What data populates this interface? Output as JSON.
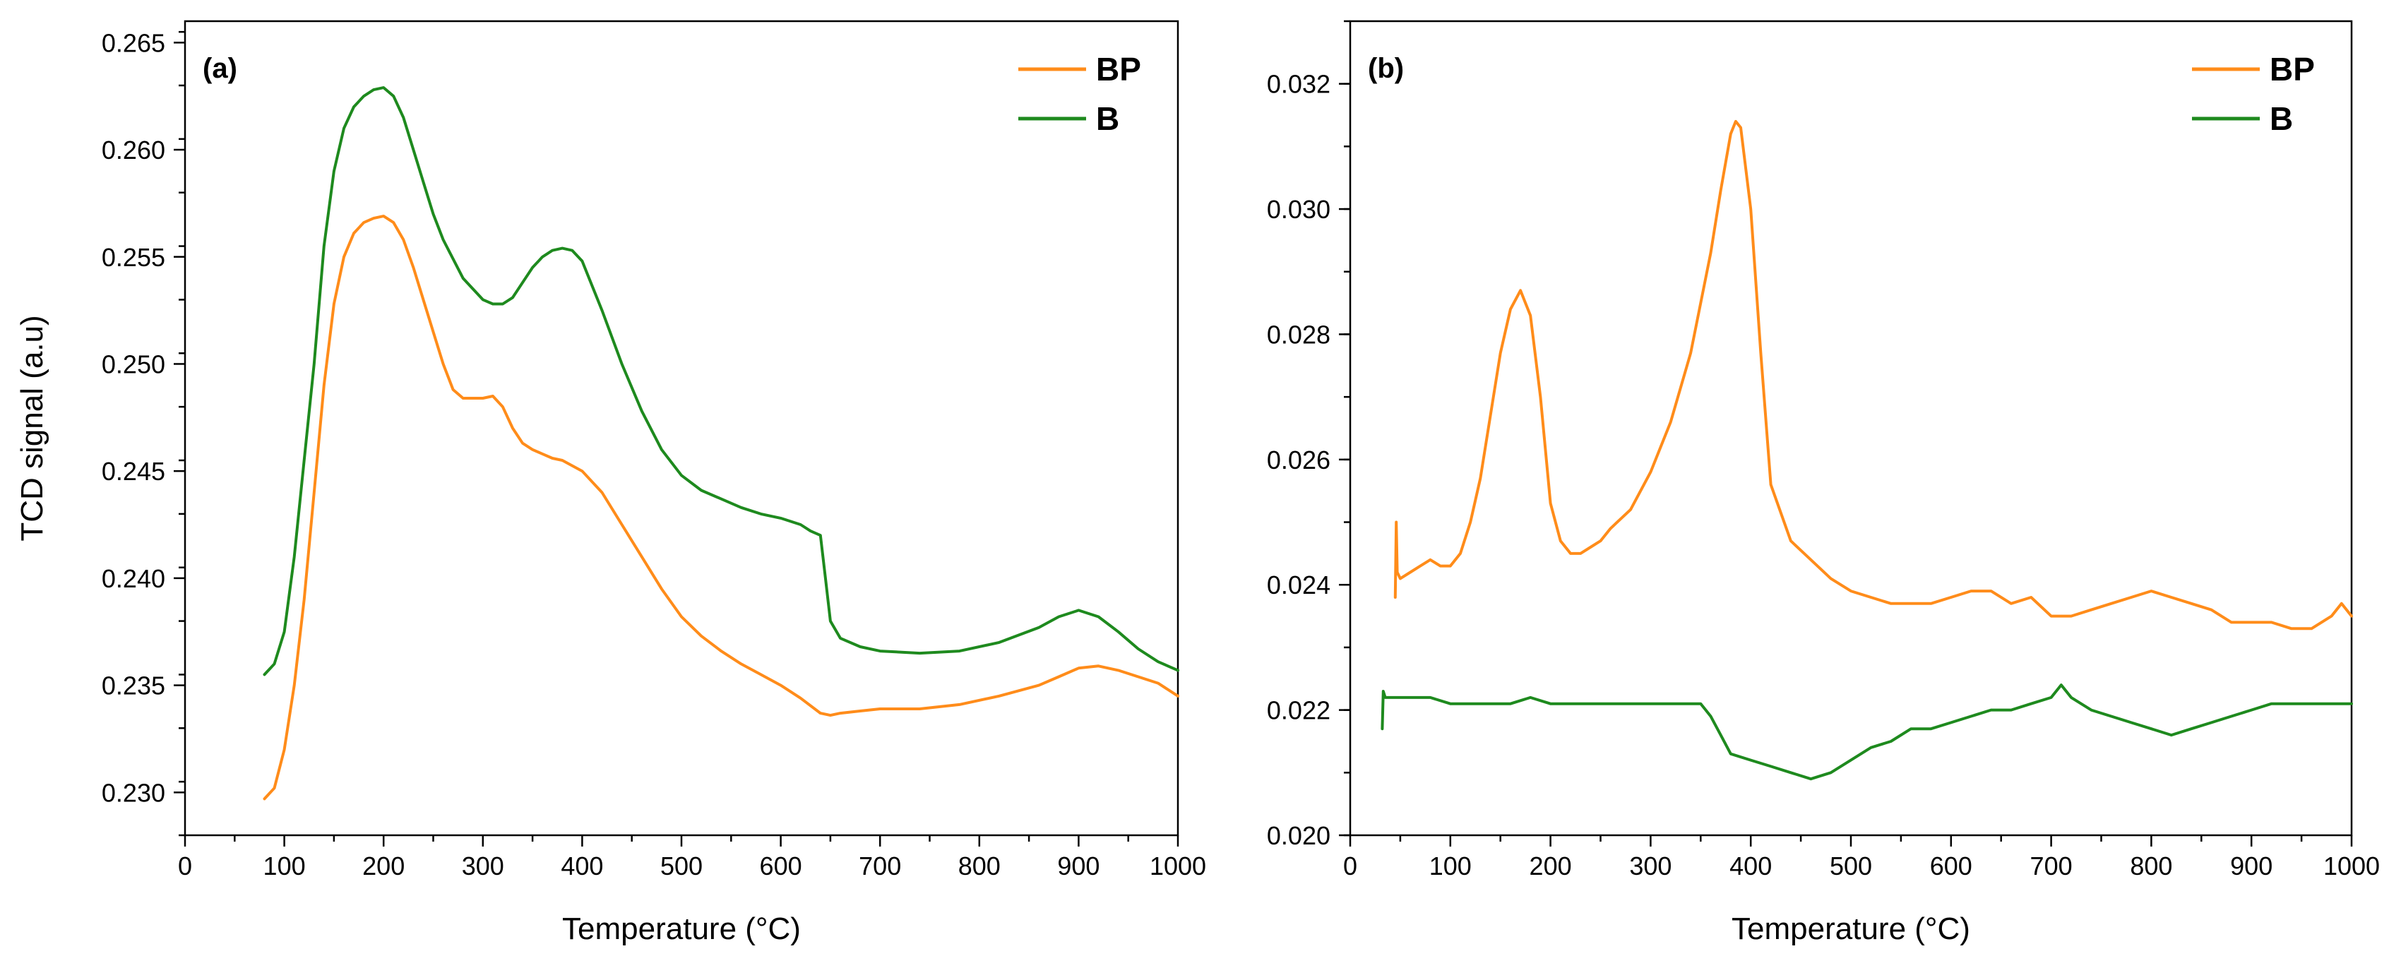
{
  "colors": {
    "BP": "#ff8c1a",
    "B": "#1e8a1e",
    "axis": "#000000"
  },
  "chart_data": [
    {
      "type": "line",
      "panel": "(a)",
      "xlabel": "Temperature (°C)",
      "ylabel": "TCD signal (a.u)",
      "xlim": [
        0,
        1000
      ],
      "ylim": [
        0.228,
        0.266
      ],
      "xticks": [
        0,
        100,
        200,
        300,
        400,
        500,
        600,
        700,
        800,
        900,
        1000
      ],
      "xtick_labels": [
        "0",
        "100",
        "200",
        "300",
        "400",
        "500",
        "600",
        "700",
        "800",
        "900",
        "1000"
      ],
      "yticks": [
        0.23,
        0.235,
        0.24,
        0.245,
        0.25,
        0.255,
        0.26,
        0.265
      ],
      "ytick_labels": [
        "0.230",
        "0.235",
        "0.240",
        "0.245",
        "0.250",
        "0.255",
        "0.260",
        "0.265"
      ],
      "legend": [
        "BP",
        "B"
      ],
      "legend_position": "top-right",
      "series": [
        {
          "name": "BP",
          "x": [
            80,
            90,
            100,
            110,
            120,
            130,
            140,
            150,
            160,
            170,
            180,
            190,
            200,
            210,
            220,
            230,
            240,
            250,
            260,
            270,
            280,
            290,
            300,
            310,
            320,
            330,
            340,
            350,
            360,
            370,
            380,
            400,
            420,
            440,
            460,
            480,
            500,
            520,
            540,
            560,
            580,
            600,
            620,
            640,
            650,
            660,
            680,
            700,
            740,
            780,
            820,
            860,
            880,
            900,
            920,
            940,
            960,
            980,
            1000
          ],
          "y": [
            0.2297,
            0.2302,
            0.232,
            0.235,
            0.239,
            0.244,
            0.249,
            0.2528,
            0.255,
            0.2561,
            0.2566,
            0.2568,
            0.2569,
            0.2566,
            0.2558,
            0.2545,
            0.253,
            0.2515,
            0.25,
            0.2488,
            0.2484,
            0.2484,
            0.2484,
            0.2485,
            0.248,
            0.247,
            0.2463,
            0.246,
            0.2458,
            0.2456,
            0.2455,
            0.245,
            0.244,
            0.2425,
            0.241,
            0.2395,
            0.2382,
            0.2373,
            0.2366,
            0.236,
            0.2355,
            0.235,
            0.2344,
            0.2337,
            0.2336,
            0.2337,
            0.2338,
            0.2339,
            0.2339,
            0.2341,
            0.2345,
            0.235,
            0.2354,
            0.2358,
            0.2359,
            0.2357,
            0.2354,
            0.2351,
            0.2345
          ]
        },
        {
          "name": "B",
          "x": [
            80,
            90,
            100,
            110,
            120,
            130,
            140,
            150,
            160,
            170,
            180,
            190,
            200,
            210,
            220,
            230,
            240,
            250,
            260,
            280,
            300,
            310,
            320,
            330,
            340,
            350,
            360,
            370,
            380,
            390,
            400,
            420,
            440,
            460,
            480,
            500,
            520,
            540,
            560,
            580,
            600,
            620,
            630,
            640,
            645,
            650,
            660,
            680,
            700,
            740,
            780,
            820,
            860,
            880,
            900,
            920,
            940,
            960,
            980,
            1000
          ],
          "y": [
            0.2355,
            0.236,
            0.2375,
            0.241,
            0.2455,
            0.25,
            0.2555,
            0.259,
            0.261,
            0.262,
            0.2625,
            0.2628,
            0.2629,
            0.2625,
            0.2615,
            0.26,
            0.2585,
            0.257,
            0.2558,
            0.254,
            0.253,
            0.2528,
            0.2528,
            0.2531,
            0.2538,
            0.2545,
            0.255,
            0.2553,
            0.2554,
            0.2553,
            0.2548,
            0.2525,
            0.25,
            0.2478,
            0.246,
            0.2448,
            0.2441,
            0.2437,
            0.2433,
            0.243,
            0.2428,
            0.2425,
            0.2422,
            0.242,
            0.24,
            0.238,
            0.2372,
            0.2368,
            0.2366,
            0.2365,
            0.2366,
            0.237,
            0.2377,
            0.2382,
            0.2385,
            0.2382,
            0.2375,
            0.2367,
            0.2361,
            0.2357
          ]
        }
      ]
    },
    {
      "type": "line",
      "panel": "(b)",
      "xlabel": "Temperature (°C)",
      "ylabel": "",
      "xlim": [
        0,
        1000
      ],
      "ylim": [
        0.02,
        0.033
      ],
      "xticks": [
        0,
        100,
        200,
        300,
        400,
        500,
        600,
        700,
        800,
        900,
        1000
      ],
      "xtick_labels": [
        "0",
        "100",
        "200",
        "300",
        "400",
        "500",
        "600",
        "700",
        "800",
        "900",
        "1000"
      ],
      "yticks": [
        0.02,
        0.022,
        0.024,
        0.026,
        0.028,
        0.03,
        0.032
      ],
      "ytick_labels": [
        "0.020",
        "0.022",
        "0.024",
        "0.026",
        "0.028",
        "0.030",
        "0.032"
      ],
      "legend": [
        "BP",
        "B"
      ],
      "legend_position": "top-right",
      "series": [
        {
          "name": "BP",
          "x": [
            45,
            46,
            47,
            50,
            60,
            70,
            80,
            90,
            100,
            110,
            120,
            130,
            140,
            150,
            160,
            170,
            180,
            190,
            200,
            210,
            220,
            230,
            240,
            250,
            260,
            280,
            300,
            320,
            340,
            350,
            360,
            370,
            380,
            385,
            390,
            400,
            410,
            420,
            440,
            460,
            480,
            500,
            520,
            540,
            560,
            580,
            600,
            620,
            640,
            660,
            680,
            700,
            720,
            740,
            760,
            780,
            800,
            820,
            840,
            860,
            880,
            900,
            920,
            940,
            960,
            980,
            990,
            1000
          ],
          "y": [
            0.0238,
            0.025,
            0.0242,
            0.0241,
            0.0242,
            0.0243,
            0.0244,
            0.0243,
            0.0243,
            0.0245,
            0.025,
            0.0257,
            0.0267,
            0.0277,
            0.0284,
            0.0287,
            0.0283,
            0.027,
            0.0253,
            0.0247,
            0.0245,
            0.0245,
            0.0246,
            0.0247,
            0.0249,
            0.0252,
            0.0258,
            0.0266,
            0.0277,
            0.0285,
            0.0293,
            0.0303,
            0.0312,
            0.0314,
            0.0313,
            0.03,
            0.0277,
            0.0256,
            0.0247,
            0.0244,
            0.0241,
            0.0239,
            0.0238,
            0.0237,
            0.0237,
            0.0237,
            0.0238,
            0.0239,
            0.0239,
            0.0237,
            0.0238,
            0.0235,
            0.0235,
            0.0236,
            0.0237,
            0.0238,
            0.0239,
            0.0238,
            0.0237,
            0.0236,
            0.0234,
            0.0234,
            0.0234,
            0.0233,
            0.0233,
            0.0235,
            0.0237,
            0.0235
          ]
        },
        {
          "name": "B",
          "x": [
            32,
            33,
            35,
            40,
            60,
            80,
            100,
            120,
            140,
            160,
            180,
            200,
            220,
            240,
            260,
            280,
            300,
            320,
            340,
            350,
            360,
            370,
            380,
            400,
            420,
            440,
            460,
            480,
            500,
            520,
            540,
            560,
            580,
            600,
            620,
            640,
            660,
            680,
            700,
            710,
            720,
            740,
            760,
            780,
            800,
            820,
            840,
            860,
            880,
            900,
            920,
            940,
            960,
            980,
            1000
          ],
          "y": [
            0.0217,
            0.0223,
            0.0222,
            0.0222,
            0.0222,
            0.0222,
            0.0221,
            0.0221,
            0.0221,
            0.0221,
            0.0222,
            0.0221,
            0.0221,
            0.0221,
            0.0221,
            0.0221,
            0.0221,
            0.0221,
            0.0221,
            0.0221,
            0.0219,
            0.0216,
            0.0213,
            0.0212,
            0.0211,
            0.021,
            0.0209,
            0.021,
            0.0212,
            0.0214,
            0.0215,
            0.0217,
            0.0217,
            0.0218,
            0.0219,
            0.022,
            0.022,
            0.0221,
            0.0222,
            0.0224,
            0.0222,
            0.022,
            0.0219,
            0.0218,
            0.0217,
            0.0216,
            0.0217,
            0.0218,
            0.0219,
            0.022,
            0.0221,
            0.0221,
            0.0221,
            0.0221,
            0.0221
          ]
        }
      ]
    }
  ]
}
